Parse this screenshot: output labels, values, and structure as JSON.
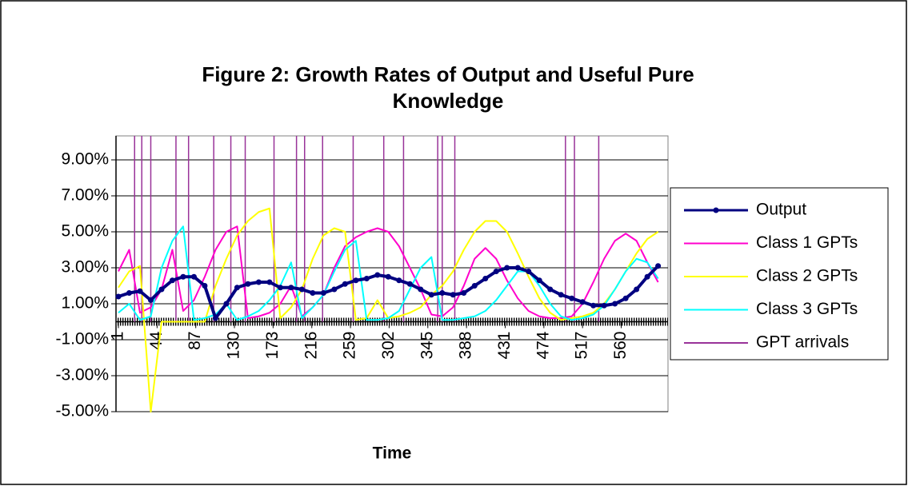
{
  "chart_data": {
    "type": "line",
    "title": [
      "Figure 2: Growth Rates of Output and Useful Pure",
      "Knowledge"
    ],
    "x_label": "Time",
    "x": [
      1,
      13,
      25,
      37,
      49,
      61,
      73,
      85,
      97,
      109,
      121,
      133,
      145,
      157,
      169,
      181,
      193,
      205,
      217,
      229,
      241,
      253,
      265,
      277,
      289,
      301,
      313,
      325,
      337,
      349,
      361,
      373,
      385,
      397,
      409,
      421,
      433,
      445,
      457,
      469,
      481,
      493,
      505,
      517,
      529,
      541,
      553,
      565,
      577,
      589,
      601
    ],
    "xlim": [
      1,
      612
    ],
    "xticks": [
      1,
      44,
      87,
      130,
      173,
      216,
      259,
      302,
      345,
      388,
      431,
      474,
      517,
      560
    ],
    "ylim": [
      -0.05,
      0.11
    ],
    "yticks": [
      {
        "value": 0.09,
        "label": "9.00%"
      },
      {
        "value": 0.07,
        "label": "7.00%"
      },
      {
        "value": 0.05,
        "label": "5.00%"
      },
      {
        "value": 0.03,
        "label": "3.00%"
      },
      {
        "value": 0.01,
        "label": "1.00%"
      },
      {
        "value": -0.01,
        "label": "-1.00%"
      },
      {
        "value": -0.03,
        "label": "-3.00%"
      },
      {
        "value": -0.05,
        "label": "-5.00%"
      }
    ],
    "grid": true,
    "legend": "right",
    "series": [
      {
        "name": "Output",
        "color": "#000080",
        "values": [
          0.014,
          0.016,
          0.017,
          0.012,
          0.018,
          0.023,
          0.025,
          0.025,
          0.02,
          0.002,
          0.01,
          0.019,
          0.021,
          0.022,
          0.022,
          0.019,
          0.019,
          0.018,
          0.016,
          0.016,
          0.018,
          0.021,
          0.023,
          0.024,
          0.026,
          0.025,
          0.023,
          0.021,
          0.018,
          0.015,
          0.016,
          0.015,
          0.016,
          0.02,
          0.024,
          0.028,
          0.03,
          0.03,
          0.028,
          0.023,
          0.018,
          0.015,
          0.013,
          0.011,
          0.009,
          0.009,
          0.01,
          0.013,
          0.018,
          0.025,
          0.031
        ]
      },
      {
        "name": "Class 1 GPTs",
        "color": "#ff00cc",
        "values": [
          0.028,
          0.04,
          0.005,
          0.008,
          0.018,
          0.04,
          0.006,
          0.012,
          0.025,
          0.04,
          0.05,
          0.053,
          0.002,
          0.003,
          0.005,
          0.01,
          0.02,
          0.003,
          0.008,
          0.015,
          0.03,
          0.042,
          0.047,
          0.05,
          0.052,
          0.05,
          0.042,
          0.03,
          0.018,
          0.004,
          0.003,
          0.008,
          0.02,
          0.035,
          0.041,
          0.035,
          0.023,
          0.013,
          0.006,
          0.003,
          0.002,
          0.002,
          0.003,
          0.01,
          0.022,
          0.035,
          0.045,
          0.049,
          0.045,
          0.033,
          0.022
        ]
      },
      {
        "name": "Class 2 GPTs",
        "color": "#ffff00",
        "values": [
          0.019,
          0.028,
          0.031,
          -0.05,
          0.0,
          0.0,
          0.0,
          0.0,
          0.0,
          0.02,
          0.035,
          0.048,
          0.056,
          0.061,
          0.063,
          0.002,
          0.008,
          0.018,
          0.035,
          0.048,
          0.052,
          0.05,
          0.001,
          0.002,
          0.012,
          0.002,
          0.003,
          0.005,
          0.008,
          0.015,
          0.02,
          0.028,
          0.04,
          0.05,
          0.056,
          0.056,
          0.05,
          0.038,
          0.025,
          0.013,
          0.005,
          0.001,
          0.002,
          0.003,
          0.005,
          0.01,
          0.018,
          0.028,
          0.038,
          0.046,
          0.05
        ]
      },
      {
        "name": "Class 3 GPTs",
        "color": "#00ffff",
        "values": [
          0.005,
          0.01,
          0.001,
          0.003,
          0.03,
          0.045,
          0.053,
          0.001,
          0.002,
          0.004,
          0.01,
          0.001,
          0.003,
          0.006,
          0.012,
          0.02,
          0.033,
          0.002,
          0.008,
          0.015,
          0.028,
          0.04,
          0.045,
          0.001,
          0.001,
          0.002,
          0.006,
          0.018,
          0.03,
          0.036,
          0.001,
          0.001,
          0.002,
          0.003,
          0.006,
          0.012,
          0.02,
          0.028,
          0.028,
          0.02,
          0.01,
          0.003,
          0.001,
          0.002,
          0.004,
          0.009,
          0.018,
          0.028,
          0.035,
          0.033,
          0.024
        ]
      }
    ],
    "arrivals": {
      "name": "GPT arrivals",
      "color": "#993399",
      "x": [
        19,
        27,
        37,
        65,
        79,
        107,
        126,
        142,
        174,
        199,
        208,
        228,
        262,
        296,
        318,
        356,
        361,
        375,
        498,
        508,
        535
      ]
    }
  }
}
